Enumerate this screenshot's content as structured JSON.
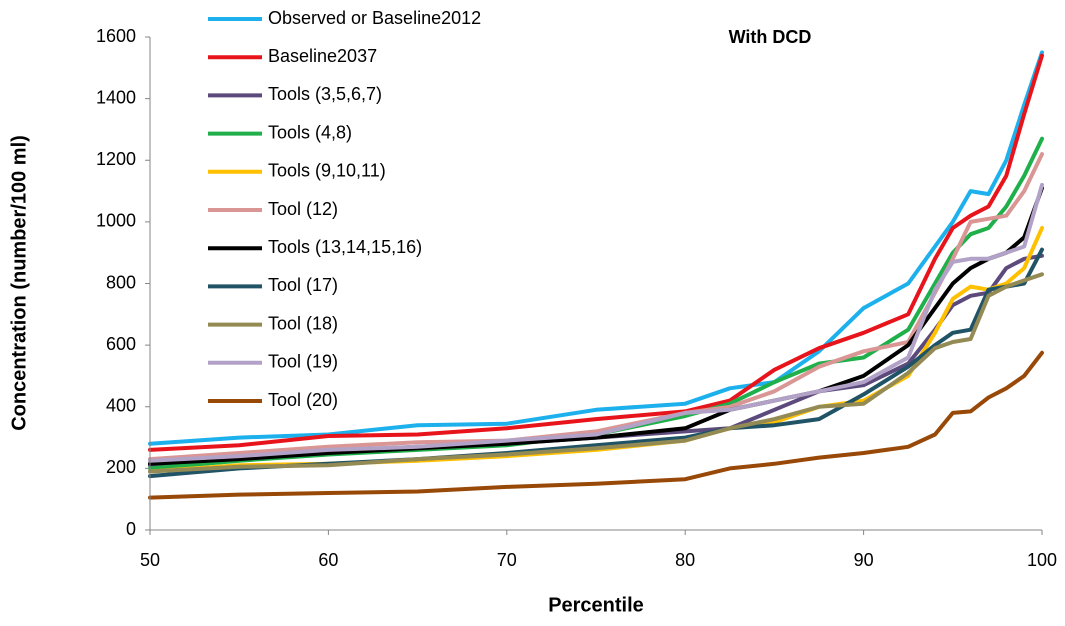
{
  "chart_data": {
    "type": "line",
    "title": "With DCD",
    "x_label": "Percentile",
    "y_label": "Concentration (number/100 ml)",
    "x": [
      50,
      55,
      60,
      65,
      70,
      75,
      80,
      82.5,
      85,
      87.5,
      90,
      92.5,
      94,
      95,
      96,
      97,
      98,
      99,
      100
    ],
    "xlim": [
      50,
      100
    ],
    "xticks": [
      50,
      60,
      70,
      80,
      90,
      100
    ],
    "ylim": [
      0,
      1600
    ],
    "yticks": [
      0,
      200,
      400,
      600,
      800,
      1000,
      1200,
      1400,
      1600
    ],
    "grid": false,
    "legend": "top-left",
    "series": [
      {
        "name": "Observed or Baseline2012",
        "color": "#1cb0ec",
        "values": [
          280,
          300,
          310,
          340,
          345,
          390,
          410,
          460,
          480,
          580,
          720,
          800,
          920,
          1000,
          1100,
          1090,
          1200,
          1380,
          1550
        ]
      },
      {
        "name": "Baseline2037",
        "color": "#e8141b",
        "values": [
          260,
          275,
          305,
          310,
          330,
          360,
          385,
          420,
          520,
          590,
          640,
          700,
          880,
          980,
          1020,
          1050,
          1150,
          1350,
          1540
        ]
      },
      {
        "name": "Tools (3,5,6,7)",
        "color": "#5c4a7c",
        "values": [
          210,
          235,
          255,
          270,
          280,
          300,
          320,
          330,
          390,
          450,
          470,
          540,
          650,
          730,
          760,
          770,
          850,
          880,
          890
        ]
      },
      {
        "name": "Tools (4,8)",
        "color": "#1faf4b",
        "values": [
          200,
          225,
          245,
          260,
          275,
          310,
          370,
          410,
          480,
          540,
          560,
          650,
          800,
          900,
          960,
          980,
          1050,
          1150,
          1270
        ]
      },
      {
        "name": "Tools (9,10,11)",
        "color": "#ffc000",
        "values": [
          190,
          210,
          215,
          225,
          240,
          260,
          290,
          330,
          350,
          400,
          420,
          500,
          640,
          750,
          790,
          780,
          800,
          850,
          980
        ]
      },
      {
        "name": "Tool (12)",
        "color": "#d99694",
        "values": [
          230,
          250,
          270,
          285,
          290,
          320,
          380,
          400,
          450,
          530,
          580,
          610,
          770,
          880,
          1000,
          1010,
          1020,
          1100,
          1220
        ]
      },
      {
        "name": "Tools (13,14,15,16)",
        "color": "#000000",
        "values": [
          215,
          230,
          250,
          265,
          280,
          300,
          330,
          390,
          420,
          450,
          500,
          600,
          720,
          800,
          850,
          880,
          900,
          950,
          1110
        ]
      },
      {
        "name": "Tool (17)",
        "color": "#1f5365",
        "values": [
          175,
          200,
          215,
          230,
          250,
          275,
          300,
          330,
          340,
          360,
          440,
          530,
          600,
          640,
          650,
          780,
          790,
          800,
          910
        ]
      },
      {
        "name": "Tool (18)",
        "color": "#948a54",
        "values": [
          190,
          205,
          210,
          230,
          245,
          265,
          290,
          330,
          360,
          400,
          410,
          510,
          590,
          610,
          620,
          760,
          790,
          810,
          830
        ]
      },
      {
        "name": "Tool (19)",
        "color": "#b3a2c7",
        "values": [
          225,
          240,
          260,
          270,
          290,
          310,
          380,
          390,
          420,
          450,
          480,
          560,
          780,
          870,
          880,
          880,
          900,
          920,
          1120
        ]
      },
      {
        "name": "Tool (20)",
        "color": "#984807",
        "values": [
          105,
          115,
          120,
          125,
          140,
          150,
          165,
          200,
          215,
          235,
          250,
          270,
          310,
          380,
          385,
          430,
          460,
          500,
          575
        ]
      }
    ]
  }
}
